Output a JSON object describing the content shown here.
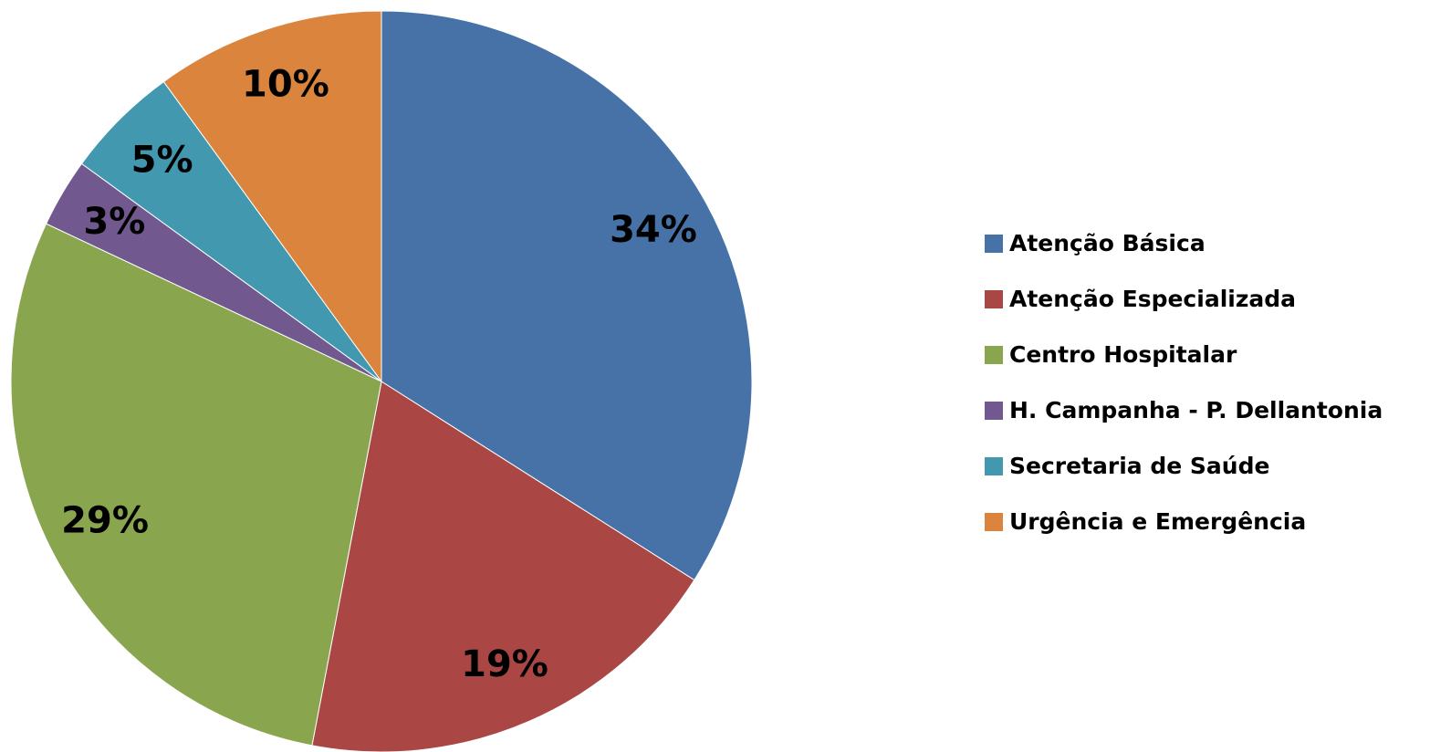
{
  "chart_data": {
    "type": "pie",
    "categories": [
      "Atenção Básica",
      "Atenção Especializada",
      "Centro Hospitalar",
      "H. Campanha - P. Dellantonia",
      "Secretaria de Saúde",
      "Urgência e Emergência"
    ],
    "values": [
      34,
      19,
      29,
      3,
      5,
      10
    ],
    "value_labels": [
      "34%",
      "19%",
      "29%",
      "3%",
      "5%",
      "10%"
    ],
    "colors": [
      "#4672a8",
      "#aa4644",
      "#89a54e",
      "#71588f",
      "#4198af",
      "#db843d"
    ],
    "legend": "right"
  }
}
